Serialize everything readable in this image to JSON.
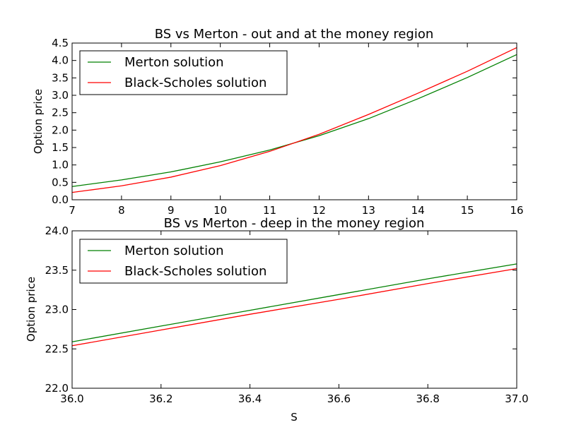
{
  "figure": {
    "background": "#ffffff"
  },
  "chart_data": [
    {
      "type": "line",
      "title": "BS vs Merton - out and at the money region",
      "xlabel": "",
      "ylabel": "Option price",
      "xlim": [
        7,
        16
      ],
      "ylim": [
        0,
        4.5
      ],
      "x_ticks": [
        7,
        8,
        9,
        10,
        11,
        12,
        13,
        14,
        15,
        16
      ],
      "x_tick_labels": [
        "7",
        "8",
        "9",
        "10",
        "11",
        "12",
        "13",
        "14",
        "15",
        "16"
      ],
      "y_ticks": [
        0,
        0.5,
        1,
        1.5,
        2,
        2.5,
        3,
        3.5,
        4,
        4.5
      ],
      "y_tick_labels": [
        "0.0",
        "0.5",
        "1.0",
        "1.5",
        "2.0",
        "2.5",
        "3.0",
        "3.5",
        "4.0",
        "4.5"
      ],
      "grid": false,
      "legend_position": "top-left",
      "x": [
        7,
        8,
        9,
        10,
        11,
        12,
        13,
        14,
        15,
        16
      ],
      "series": [
        {
          "name": "Merton solution",
          "color": "#008000",
          "values": [
            0.38,
            0.57,
            0.8,
            1.09,
            1.43,
            1.84,
            2.33,
            2.9,
            3.51,
            4.17
          ]
        },
        {
          "name": "Black-Scholes solution",
          "color": "#ff0000",
          "values": [
            0.21,
            0.4,
            0.65,
            0.98,
            1.39,
            1.88,
            2.45,
            3.06,
            3.69,
            4.37
          ]
        }
      ]
    },
    {
      "type": "line",
      "title": "BS vs Merton - deep in the money region",
      "xlabel": "S",
      "ylabel": "Option price",
      "xlim": [
        36.0,
        37.0
      ],
      "ylim": [
        22.0,
        24.0
      ],
      "x_ticks": [
        36.0,
        36.2,
        36.4,
        36.6,
        36.8,
        37.0
      ],
      "x_tick_labels": [
        "36.0",
        "36.2",
        "36.4",
        "36.6",
        "36.8",
        "37.0"
      ],
      "y_ticks": [
        22.0,
        22.5,
        23.0,
        23.5,
        24.0
      ],
      "y_tick_labels": [
        "22.0",
        "22.5",
        "23.0",
        "23.5",
        "24.0"
      ],
      "grid": false,
      "legend_position": "top-left",
      "x": [
        36.0,
        36.2,
        36.4,
        36.6,
        36.8,
        37.0
      ],
      "series": [
        {
          "name": "Merton solution",
          "color": "#008000",
          "values": [
            22.59,
            22.79,
            22.99,
            23.19,
            23.39,
            23.58
          ]
        },
        {
          "name": "Black-Scholes solution",
          "color": "#ff0000",
          "values": [
            22.54,
            22.74,
            22.94,
            23.13,
            23.33,
            23.52
          ]
        }
      ]
    }
  ]
}
